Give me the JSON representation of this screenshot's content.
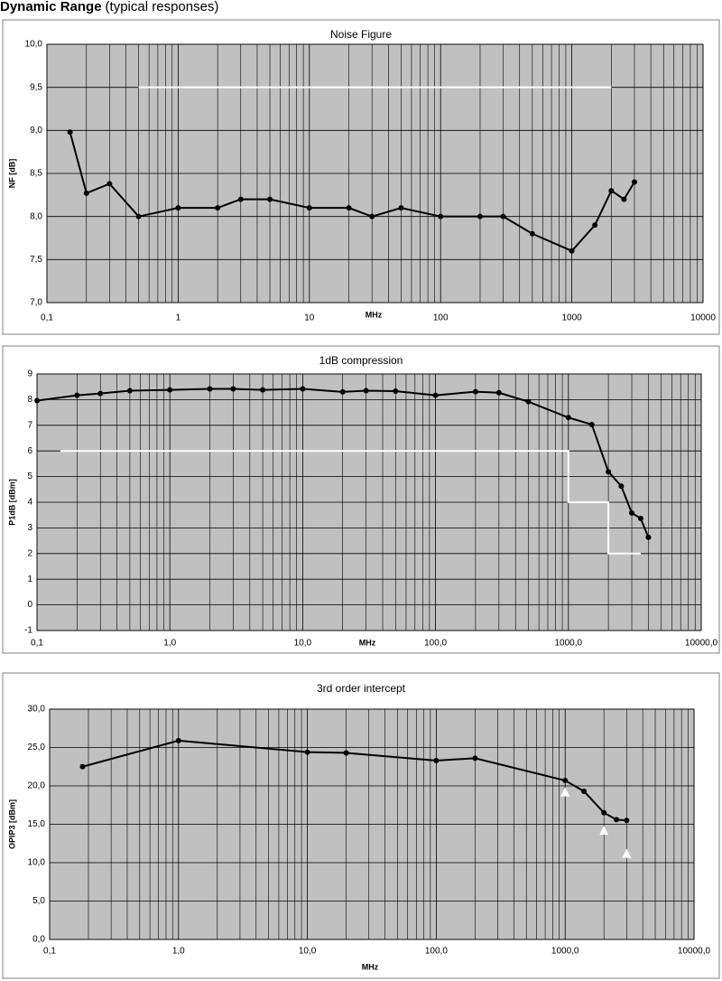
{
  "header": {
    "title": "Dynamic Range",
    "subtitle": "(typical responses)"
  },
  "chart_data": [
    {
      "type": "line",
      "title": "Noise Figure",
      "xlabel": "MHz",
      "ylabel": "NF [dB]",
      "xscale": "log",
      "xlim": [
        0.1,
        10000
      ],
      "xticks": [
        {
          "value": 0.1,
          "label": "0,1"
        },
        1,
        10,
        100,
        1000,
        10000
      ],
      "ylim": [
        7,
        10
      ],
      "yticks": [
        {
          "value": 7,
          "label": "7,0"
        },
        {
          "value": 7.5,
          "label": "7,5"
        },
        {
          "value": 8,
          "label": "8,0"
        },
        {
          "value": 8.5,
          "label": "8,5"
        },
        {
          "value": 9,
          "label": "9,0"
        },
        {
          "value": 9.5,
          "label": "9,5"
        },
        {
          "value": 10,
          "label": "10,0"
        }
      ],
      "grid": true,
      "minor_grid": true,
      "plot_background": "#c0c0c0",
      "series": [
        {
          "color": "#000000",
          "marker": "circle",
          "line": true,
          "x": [
            0.15,
            0.2,
            0.3,
            0.5,
            1,
            2,
            3,
            5,
            10,
            20,
            30,
            50,
            100,
            200,
            300,
            500,
            1000,
            1500,
            2000,
            2500,
            3000
          ],
          "values": [
            8.98,
            8.27,
            8.38,
            8.0,
            8.1,
            8.1,
            8.2,
            8.2,
            8.1,
            8.1,
            8.0,
            8.1,
            8.0,
            8.0,
            8.0,
            7.8,
            7.6,
            7.9,
            8.3,
            8.2,
            8.4
          ]
        },
        {
          "color": "#ffffff",
          "marker": "none",
          "line": true,
          "x": [
            0.5,
            2000
          ],
          "values": [
            9.5,
            9.5
          ]
        }
      ]
    },
    {
      "type": "line",
      "title": "1dB compression",
      "xlabel": "MHz",
      "ylabel": "P1dB [dBm]",
      "xscale": "log",
      "xlim": [
        0.1,
        10000
      ],
      "xticks": [
        {
          "value": 0.1,
          "label": "0,1"
        },
        {
          "value": 1,
          "label": "1,0"
        },
        {
          "value": 10,
          "label": "10,0"
        },
        {
          "value": 100,
          "label": "100,0"
        },
        {
          "value": 1000,
          "label": "1000,0"
        },
        {
          "value": 10000,
          "label": "10000,0"
        }
      ],
      "ylim": [
        -1,
        9
      ],
      "yticks": [
        -1,
        0,
        1,
        2,
        3,
        4,
        5,
        6,
        7,
        8,
        9
      ],
      "grid": true,
      "minor_grid": true,
      "plot_background": "#c0c0c0",
      "series": [
        {
          "color": "#000000",
          "marker": "circle",
          "line": true,
          "x": [
            0.1,
            0.2,
            0.3,
            0.5,
            1,
            2,
            3,
            5,
            10,
            20,
            30,
            50,
            100,
            200,
            300,
            500,
            1000,
            1500,
            2000,
            2500,
            3000,
            3500,
            4000
          ],
          "values": [
            7.96,
            8.17,
            8.24,
            8.35,
            8.38,
            8.42,
            8.42,
            8.38,
            8.42,
            8.3,
            8.35,
            8.33,
            8.17,
            8.31,
            8.27,
            7.92,
            7.3,
            7.03,
            5.19,
            4.63,
            3.58,
            3.37,
            2.63
          ]
        },
        {
          "color": "#ffffff",
          "marker": "none",
          "line": true,
          "x": [
            0.15,
            1000,
            1000,
            2000,
            2000,
            3500
          ],
          "values": [
            6,
            6,
            4,
            4,
            2,
            2
          ]
        }
      ]
    },
    {
      "type": "line",
      "title": "3rd order intercept",
      "xlabel": "MHz",
      "ylabel": "OPIP3 [dBm]",
      "xscale": "log",
      "xlim": [
        0.1,
        10000
      ],
      "xticks": [
        {
          "value": 0.1,
          "label": "0,1"
        },
        {
          "value": 1,
          "label": "1,0"
        },
        {
          "value": 10,
          "label": "10,0"
        },
        {
          "value": 100,
          "label": "100,0"
        },
        {
          "value": 1000,
          "label": "1000,0"
        },
        {
          "value": 10000,
          "label": "10000,0"
        }
      ],
      "ylim": [
        0,
        30
      ],
      "yticks": [
        {
          "value": 0,
          "label": "0,0"
        },
        {
          "value": 5,
          "label": "5,0"
        },
        {
          "value": 10,
          "label": "10,0"
        },
        {
          "value": 15,
          "label": "15,0"
        },
        {
          "value": 20,
          "label": "20,0"
        },
        {
          "value": 25,
          "label": "25,0"
        },
        {
          "value": 30,
          "label": "30,0"
        }
      ],
      "grid": true,
      "minor_grid": true,
      "plot_background": "#c0c0c0",
      "series": [
        {
          "color": "#000000",
          "marker": "circle",
          "line": true,
          "x": [
            0.18,
            1,
            10,
            20,
            100,
            200,
            1000,
            1400,
            2000,
            2500,
            3000
          ],
          "values": [
            22.5,
            25.9,
            24.4,
            24.3,
            23.3,
            23.6,
            20.7,
            19.3,
            16.5,
            15.6,
            15.5
          ]
        },
        {
          "color": "#ffffff",
          "marker": "triangle",
          "line": false,
          "x": [
            1000,
            2000,
            3000
          ],
          "values": [
            19.1,
            14.1,
            11.1
          ]
        }
      ]
    }
  ]
}
